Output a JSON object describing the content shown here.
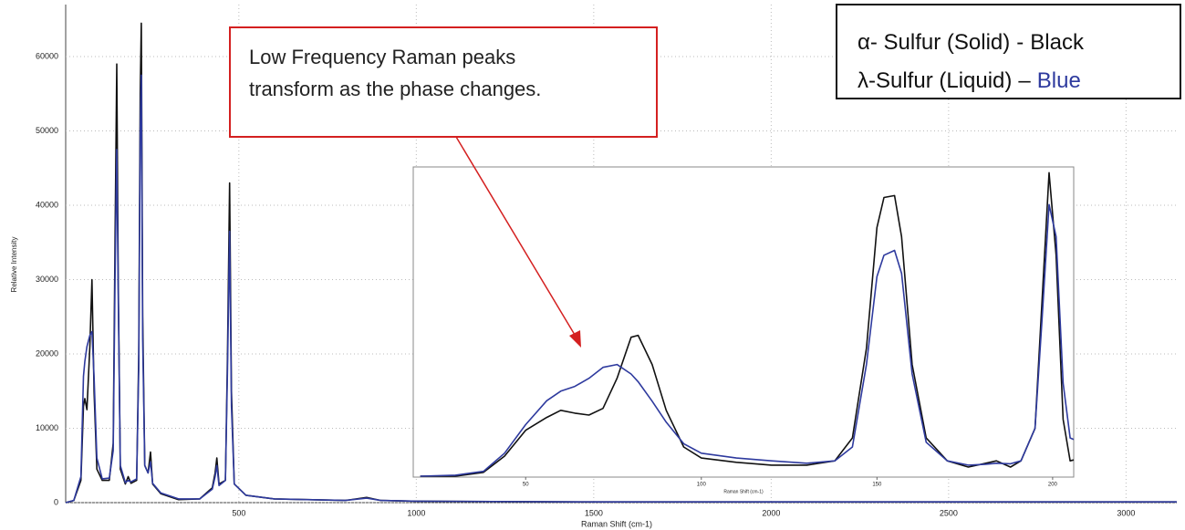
{
  "chart_data": [
    {
      "type": "line",
      "x_label": "Raman Shift (cm-1)",
      "y_label": "Relative Intensity",
      "xlim": [
        12,
        3143
      ],
      "ylim": [
        0,
        67000
      ],
      "xticks": [
        500,
        1000,
        1500,
        2000,
        2500,
        3000
      ],
      "yticks": [
        0,
        10000,
        20000,
        30000,
        40000,
        50000,
        60000
      ],
      "grid": true,
      "x": [
        12,
        35,
        55,
        62,
        66,
        72,
        80,
        86,
        92,
        100,
        115,
        135,
        146,
        151,
        156,
        160,
        166,
        180,
        188,
        196,
        212,
        218,
        222,
        225,
        229,
        235,
        244,
        251,
        257,
        280,
        330,
        390,
        425,
        433,
        438,
        444,
        462,
        468,
        474,
        479,
        487,
        520,
        600,
        800,
        860,
        900,
        1000,
        1500,
        2000,
        2500,
        3143
      ],
      "series": [
        {
          "name": "α- Sulfur (Solid)",
          "legend_sep": "-",
          "legend_color": "Black",
          "color": "#111111",
          "values": [
            0,
            300,
            3000,
            13000,
            14000,
            12500,
            21000,
            30000,
            15000,
            4500,
            3000,
            3000,
            8000,
            35000,
            59000,
            30000,
            4500,
            2500,
            3500,
            2600,
            3000,
            20000,
            55000,
            64500,
            25000,
            5000,
            4000,
            6800,
            2500,
            1200,
            400,
            500,
            2000,
            4000,
            6000,
            2500,
            3000,
            20000,
            43000,
            15000,
            2500,
            1000,
            500,
            300,
            700,
            300,
            200,
            100,
            100,
            100,
            100
          ]
        },
        {
          "name": "λ-Sulfur (Liquid)",
          "legend_sep": "–",
          "legend_color": "Blue",
          "color": "#2e3a9e",
          "values": [
            0,
            300,
            3500,
            17000,
            19000,
            21000,
            22500,
            23000,
            17000,
            6000,
            3200,
            3300,
            7000,
            30000,
            47500,
            28000,
            5000,
            2700,
            3000,
            2800,
            3200,
            18000,
            50000,
            57500,
            22000,
            5000,
            4000,
            5500,
            2600,
            1300,
            500,
            500,
            1800,
            3500,
            5000,
            2300,
            3000,
            18000,
            36500,
            13000,
            2500,
            1000,
            500,
            300,
            600,
            300,
            200,
            100,
            100,
            100,
            100
          ]
        }
      ],
      "annotation": [
        "Low Frequency Raman peaks",
        "transform as the phase changes."
      ]
    },
    {
      "type": "line",
      "x_label": "Raman Shift (cm-1)",
      "xlim": [
        18,
        206
      ],
      "ylim": [
        0,
        65000
      ],
      "xticks": [
        50,
        100,
        150,
        200
      ],
      "x": [
        20,
        30,
        38,
        44,
        50,
        56,
        60,
        64,
        68,
        72,
        76,
        80,
        82,
        86,
        90,
        95,
        100,
        110,
        120,
        130,
        138,
        143,
        147,
        150,
        152,
        155,
        157,
        160,
        164,
        170,
        176,
        181,
        184,
        188,
        191,
        195,
        197,
        199,
        201,
        203,
        205,
        206
      ],
      "series": [
        {
          "color": "#111111",
          "values": [
            200,
            200,
            1000,
            4400,
            9800,
            12500,
            14000,
            13400,
            13000,
            14400,
            20700,
            29300,
            29700,
            23600,
            14000,
            6300,
            4000,
            3100,
            2500,
            2500,
            3400,
            8200,
            27000,
            52300,
            58600,
            59000,
            50400,
            23600,
            8200,
            3400,
            2100,
            2900,
            3400,
            2100,
            3400,
            10200,
            37000,
            63800,
            46500,
            12100,
            3400,
            3600
          ]
        },
        {
          "color": "#2e3a9e",
          "values": [
            200,
            400,
            1200,
            5000,
            11000,
            16000,
            18000,
            19000,
            20700,
            23000,
            23600,
            21600,
            20000,
            15900,
            11500,
            7000,
            5000,
            4000,
            3400,
            2900,
            3400,
            6300,
            23600,
            42000,
            46500,
            47500,
            42700,
            21600,
            7300,
            3400,
            2500,
            2700,
            2900,
            2800,
            3400,
            10200,
            33100,
            57100,
            50400,
            19700,
            8200,
            7900
          ]
        }
      ]
    }
  ]
}
